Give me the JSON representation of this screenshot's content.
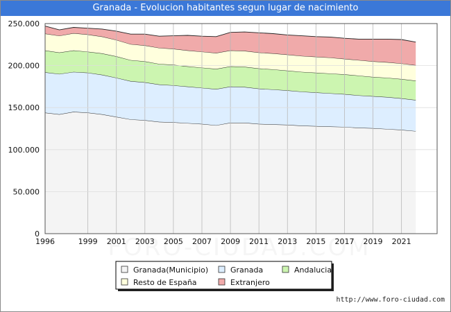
{
  "chart_data": {
    "type": "area",
    "stacked": true,
    "title": "Granada - Evolucion habitantes segun lugar de nacimiento",
    "x": [
      1996,
      1997,
      1998,
      1999,
      2000,
      2001,
      2002,
      2003,
      2004,
      2005,
      2006,
      2007,
      2008,
      2009,
      2010,
      2011,
      2012,
      2013,
      2014,
      2015,
      2016,
      2017,
      2018,
      2019,
      2020,
      2021,
      2022
    ],
    "x_tick_labels": [
      "1996",
      "1999",
      "2001",
      "2003",
      "2005",
      "2007",
      "2009",
      "2011",
      "2013",
      "2015",
      "2017",
      "2019",
      "2021"
    ],
    "x_tick_values": [
      1996,
      1999,
      2001,
      2003,
      2005,
      2007,
      2009,
      2011,
      2013,
      2015,
      2017,
      2019,
      2021
    ],
    "y_tick_labels": [
      "0",
      "50.000",
      "100.000",
      "150.000",
      "200.000",
      "250.000"
    ],
    "y_tick_values": [
      0,
      50000,
      100000,
      150000,
      200000,
      250000
    ],
    "ylim": [
      0,
      250000
    ],
    "grid": true,
    "legend_placement": "bottom-center",
    "series": [
      {
        "name": "Granada(Municipio)",
        "color": "#f4f4f4",
        "values": [
          144000,
          142000,
          145000,
          144000,
          142000,
          139000,
          136000,
          135000,
          133000,
          132500,
          131500,
          130500,
          129000,
          132000,
          132000,
          130500,
          130000,
          129500,
          128500,
          128000,
          127500,
          127000,
          126000,
          125500,
          124500,
          123500,
          122000
        ]
      },
      {
        "name": "Granada",
        "color": "#ddeeff",
        "values": [
          48000,
          48000,
          47500,
          47500,
          47000,
          46500,
          45500,
          45000,
          44500,
          44000,
          43500,
          43000,
          43000,
          43000,
          42500,
          42000,
          41500,
          41000,
          40500,
          40000,
          39500,
          39000,
          38500,
          38000,
          38000,
          37500,
          37000
        ]
      },
      {
        "name": "Andalucia",
        "color": "#ccf5b0",
        "values": [
          26000,
          25500,
          25500,
          25000,
          25500,
          25500,
          25000,
          25000,
          24500,
          24500,
          24000,
          24000,
          24000,
          24000,
          24000,
          24000,
          24000,
          23500,
          23500,
          23500,
          23500,
          23500,
          23500,
          23000,
          23000,
          23000,
          23000
        ]
      },
      {
        "name": "Resto de España",
        "color": "#ffffdd",
        "values": [
          20000,
          20000,
          20500,
          20500,
          20000,
          19500,
          19000,
          19000,
          19000,
          19000,
          19000,
          19000,
          19000,
          19000,
          19000,
          19000,
          19000,
          19000,
          19000,
          19000,
          19000,
          18500,
          18500,
          18500,
          18500,
          18500,
          18500
        ]
      },
      {
        "name": "Extranjero",
        "color": "#f0aaaa",
        "values": [
          9000,
          7000,
          7000,
          7500,
          9000,
          10500,
          12000,
          13500,
          14000,
          15500,
          18000,
          18500,
          19500,
          21500,
          22500,
          23500,
          23500,
          23500,
          24000,
          24000,
          24500,
          24500,
          25000,
          26500,
          27500,
          28500,
          27500
        ]
      }
    ]
  },
  "footer_text": "http://www.foro-ciudad.com",
  "watermark_text": "FORO-CIUDAD.COM"
}
